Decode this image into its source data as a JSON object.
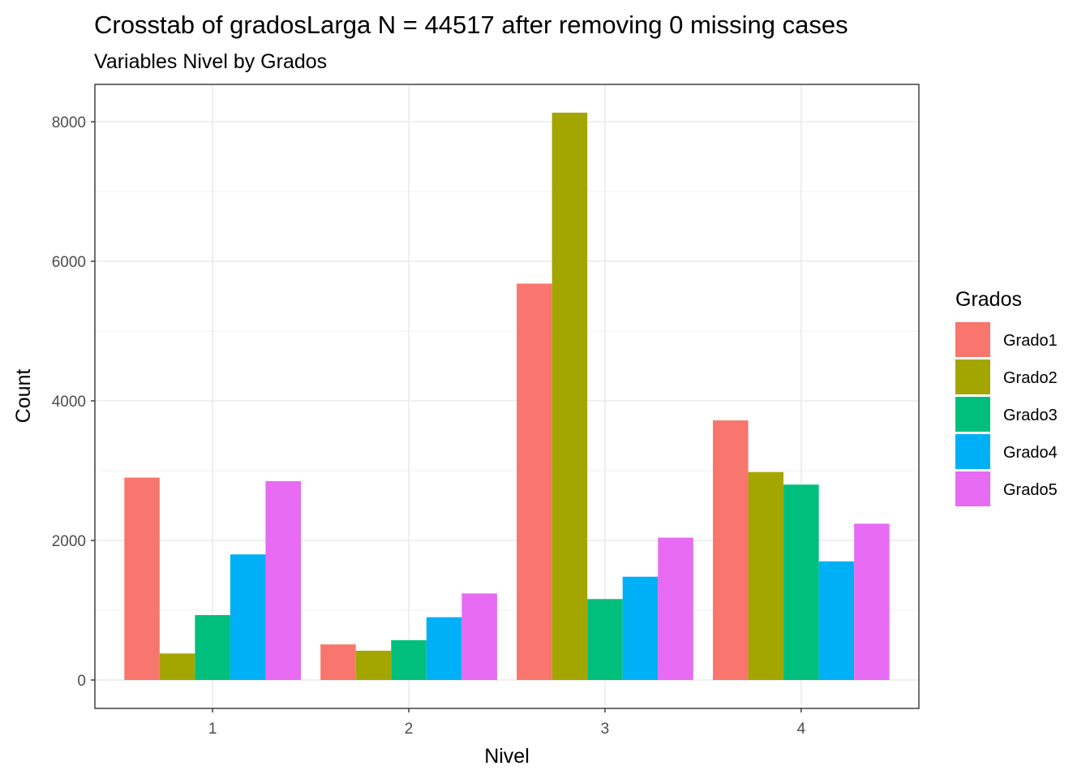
{
  "chart_data": {
    "type": "bar",
    "title": "Crosstab of gradosLarga N = 44517 after removing 0 missing cases",
    "subtitle": "Variables Nivel by Grados",
    "xlabel": "Nivel",
    "ylabel": "Count",
    "categories": [
      "1",
      "2",
      "3",
      "4"
    ],
    "yticks": [
      "0",
      "2000",
      "4000",
      "6000",
      "8000"
    ],
    "ylim": [
      -400,
      8540
    ],
    "grid": true,
    "legend_title": "Grados",
    "legend_position": "right",
    "series": [
      {
        "name": "Grado1",
        "color": "#F8766D",
        "values": [
          2900,
          510,
          5680,
          3720
        ]
      },
      {
        "name": "Grado2",
        "color": "#A3A500",
        "values": [
          380,
          420,
          8130,
          2980
        ]
      },
      {
        "name": "Grado3",
        "color": "#00BF7D",
        "values": [
          930,
          570,
          1160,
          2800
        ]
      },
      {
        "name": "Grado4",
        "color": "#00B0F6",
        "values": [
          1800,
          900,
          1480,
          1700
        ]
      },
      {
        "name": "Grado5",
        "color": "#E76BF3",
        "values": [
          2850,
          1240,
          2040,
          2240
        ]
      }
    ]
  }
}
